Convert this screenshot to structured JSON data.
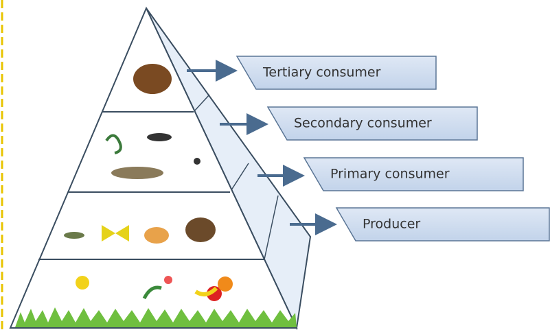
{
  "levels": [
    {
      "label": "Tertiary consumer"
    },
    {
      "label": "Secondary consumer"
    },
    {
      "label": "Primary consumer"
    },
    {
      "label": "Producer"
    }
  ]
}
